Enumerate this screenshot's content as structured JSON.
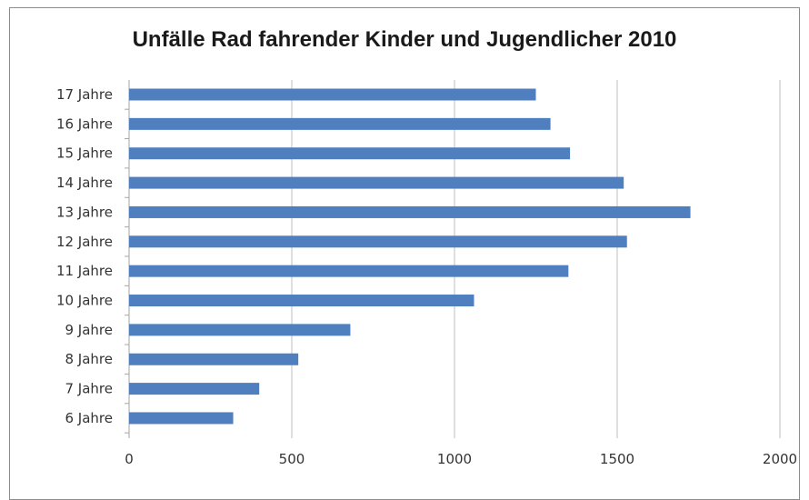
{
  "chart_data": {
    "type": "bar",
    "orientation": "horizontal",
    "title": "Unfälle Rad fahrender Kinder und Jugendlicher 2010",
    "xlabel": "",
    "ylabel": "",
    "categories": [
      "17 Jahre",
      "16 Jahre",
      "15 Jahre",
      "14 Jahre",
      "13 Jahre",
      "12 Jahre",
      "11 Jahre",
      "10 Jahre",
      "9 Jahre",
      "8 Jahre",
      "7 Jahre",
      "6 Jahre"
    ],
    "values": [
      1250,
      1295,
      1355,
      1520,
      1725,
      1530,
      1350,
      1060,
      680,
      520,
      400,
      320
    ],
    "xlim": [
      0,
      2000
    ],
    "xticks": [
      "0",
      "500",
      "1000",
      "1500",
      "2000"
    ],
    "grid": true,
    "bar_color": "#4f7fbf"
  }
}
